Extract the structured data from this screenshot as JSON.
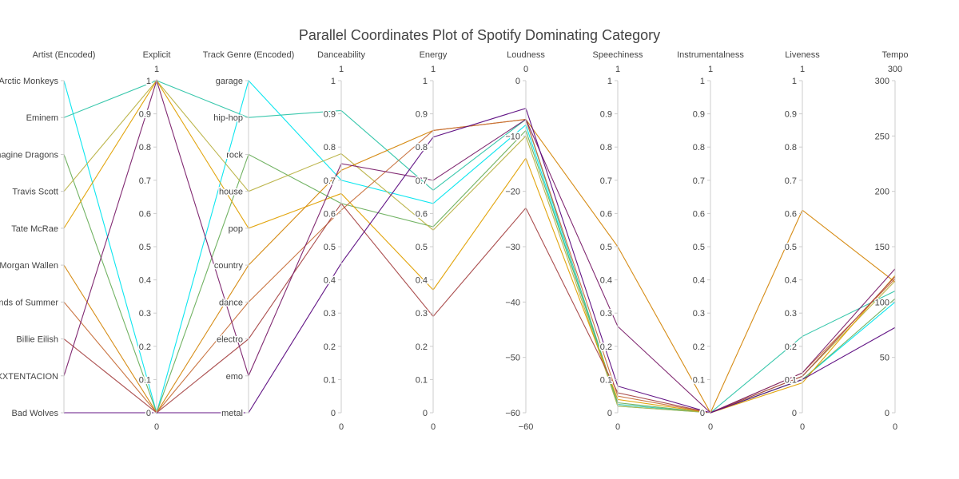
{
  "chart_data": {
    "type": "parallel-coordinates",
    "title": "Parallel Coordinates Plot of Spotify Dominating Category",
    "dimensions": [
      {
        "key": "artist",
        "label": "Artist (Encoded)",
        "categorical": true,
        "range": [
          0,
          9
        ],
        "categories": [
          "Bad Wolves",
          "XXXTENTACION",
          "Billie Eilish",
          "Sounds of Summer",
          "Morgan Wallen",
          "Tate McRae",
          "Travis Scott",
          "Imagine Dragons",
          "Eminem",
          "Arctic Monkeys"
        ],
        "tick_texts": [
          "Bad Wolves",
          "XXXTENTACION",
          "Billie Eilish",
          "Sounds of Summer",
          "Morgan Wallen",
          "Tate McRae",
          "Travis Scott",
          "Imagine Dragons",
          "Eminem",
          "Arctic Monkeys"
        ]
      },
      {
        "key": "explicit",
        "label": "Explicit",
        "range": [
          0,
          1
        ],
        "tick_values": [
          0,
          0.1,
          0.2,
          0.3,
          0.4,
          0.5,
          0.6,
          0.7,
          0.8,
          0.9,
          1
        ],
        "tick_texts": [
          "0",
          "0.1",
          "0.2",
          "0.3",
          "0.4",
          "0.5",
          "0.6",
          "0.7",
          "0.8",
          "0.9",
          "1"
        ],
        "min_label": "0",
        "max_label": "1"
      },
      {
        "key": "genre",
        "label": "Track Genre (Encoded)",
        "categorical": true,
        "range": [
          0,
          9
        ],
        "categories": [
          "metal",
          "emo",
          "electro",
          "dance",
          "country",
          "pop",
          "house",
          "rock",
          "hip-hop",
          "garage"
        ],
        "tick_texts": [
          "metal",
          "emo",
          "electro",
          "dance",
          "country",
          "pop",
          "house",
          "rock",
          "hip-hop",
          "garage"
        ]
      },
      {
        "key": "danceability",
        "label": "Danceability",
        "range": [
          0,
          1
        ],
        "tick_values": [
          0,
          0.1,
          0.2,
          0.3,
          0.4,
          0.5,
          0.6,
          0.7,
          0.8,
          0.9,
          1
        ],
        "tick_texts": [
          "0",
          "0.1",
          "0.2",
          "0.3",
          "0.4",
          "0.5",
          "0.6",
          "0.7",
          "0.8",
          "0.9",
          "1"
        ],
        "min_label": "0",
        "max_label": "1"
      },
      {
        "key": "energy",
        "label": "Energy",
        "range": [
          0,
          1
        ],
        "tick_values": [
          0,
          0.1,
          0.2,
          0.3,
          0.4,
          0.5,
          0.6,
          0.7,
          0.8,
          0.9,
          1
        ],
        "tick_texts": [
          "0",
          "0.1",
          "0.2",
          "0.3",
          "0.4",
          "0.5",
          "0.6",
          "0.7",
          "0.8",
          "0.9",
          "1"
        ],
        "min_label": "0",
        "max_label": "1"
      },
      {
        "key": "loudness",
        "label": "Loudness",
        "range": [
          -60,
          0
        ],
        "tick_values": [
          -60,
          -50,
          -40,
          -30,
          -20,
          -10,
          0
        ],
        "tick_texts": [
          "−60",
          "−50",
          "−40",
          "−30",
          "−20",
          "−10",
          "0"
        ],
        "min_label": "−60",
        "max_label": "0"
      },
      {
        "key": "speechiness",
        "label": "Speechiness",
        "range": [
          0,
          1
        ],
        "tick_values": [
          0,
          0.1,
          0.2,
          0.3,
          0.4,
          0.5,
          0.6,
          0.7,
          0.8,
          0.9,
          1
        ],
        "tick_texts": [
          "0",
          "0.1",
          "0.2",
          "0.3",
          "0.4",
          "0.5",
          "0.6",
          "0.7",
          "0.8",
          "0.9",
          "1"
        ],
        "min_label": "0",
        "max_label": "1"
      },
      {
        "key": "instrumentalness",
        "label": "Instrumentalness",
        "range": [
          0,
          1
        ],
        "tick_values": [
          0,
          0.1,
          0.2,
          0.3,
          0.4,
          0.5,
          0.6,
          0.7,
          0.8,
          0.9,
          1
        ],
        "tick_texts": [
          "0",
          "0.1",
          "0.2",
          "0.3",
          "0.4",
          "0.5",
          "0.6",
          "0.7",
          "0.8",
          "0.9",
          "1"
        ],
        "min_label": "0",
        "max_label": "1"
      },
      {
        "key": "liveness",
        "label": "Liveness",
        "range": [
          0,
          1
        ],
        "tick_values": [
          0,
          0.1,
          0.2,
          0.3,
          0.4,
          0.5,
          0.6,
          0.7,
          0.8,
          0.9,
          1
        ],
        "tick_texts": [
          "0",
          "0.1",
          "0.2",
          "0.3",
          "0.4",
          "0.5",
          "0.6",
          "0.7",
          "0.8",
          "0.9",
          "1"
        ],
        "min_label": "0",
        "max_label": "1"
      },
      {
        "key": "tempo",
        "label": "Tempo",
        "range": [
          0,
          300
        ],
        "tick_values": [
          0,
          50,
          100,
          150,
          200,
          250,
          300
        ],
        "tick_texts": [
          "0",
          "50",
          "100",
          "150",
          "200",
          "250",
          "300"
        ],
        "min_label": "0",
        "max_label": "300"
      }
    ],
    "lines": [
      {
        "color": "#00e5ee",
        "values": [
          9,
          0,
          9,
          0.7,
          0.63,
          -8,
          0.02,
          0,
          0.1,
          100
        ]
      },
      {
        "color": "#2ec4a8",
        "values": [
          8,
          1,
          8,
          0.91,
          0.67,
          -7,
          0.025,
          0,
          0.23,
          110
        ]
      },
      {
        "color": "#6aaf5c",
        "values": [
          7,
          0,
          7,
          0.63,
          0.56,
          -9,
          0.03,
          0,
          0.1,
          103
        ]
      },
      {
        "color": "#b9b245",
        "values": [
          6,
          1,
          6,
          0.78,
          0.55,
          -10,
          0.02,
          0,
          0.11,
          119
        ]
      },
      {
        "color": "#e0a000",
        "values": [
          5,
          1,
          5,
          0.66,
          0.37,
          -14,
          0.04,
          0,
          0.09,
          124
        ]
      },
      {
        "color": "#d4860a",
        "values": [
          4,
          0,
          4,
          0.73,
          0.85,
          -7,
          0.5,
          0,
          0.61,
          118
        ]
      },
      {
        "color": "#c76f3a",
        "values": [
          3,
          0,
          3,
          0.61,
          0.85,
          -7,
          0.05,
          0,
          0.12,
          121
        ]
      },
      {
        "color": "#a64646",
        "values": [
          2,
          0,
          2,
          0.63,
          0.29,
          -23,
          0.06,
          0,
          0.11,
          123
        ]
      },
      {
        "color": "#7a1f6a",
        "values": [
          1,
          1,
          1,
          0.75,
          0.7,
          -7,
          0.26,
          0,
          0.12,
          130
        ]
      },
      {
        "color": "#5b0a80",
        "values": [
          0,
          0,
          0,
          0.45,
          0.83,
          -5,
          0.08,
          0,
          0.1,
          77
        ]
      }
    ]
  }
}
